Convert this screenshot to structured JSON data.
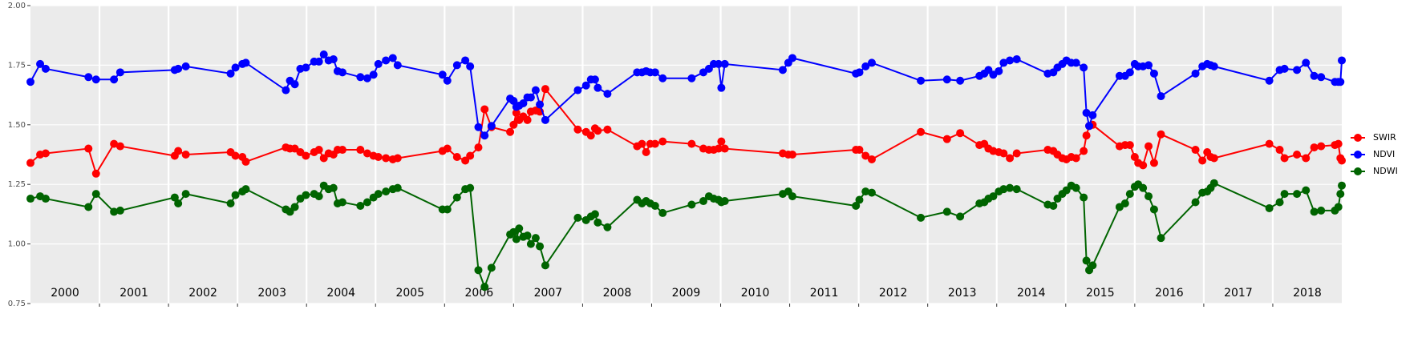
{
  "chart_data": {
    "type": "line",
    "categories": [
      "2000",
      "2001",
      "2002",
      "2003",
      "2004",
      "2005",
      "2006",
      "2007",
      "2008",
      "2009",
      "2010",
      "2011",
      "2012",
      "2013",
      "2014",
      "2015",
      "2016",
      "2017",
      "2018"
    ],
    "x": [
      2000.0,
      2000.14,
      2000.22,
      2000.84,
      2000.95,
      2001.21,
      2001.3,
      2002.09,
      2002.14,
      2002.25,
      2002.9,
      2002.97,
      2003.07,
      2003.12,
      2003.7,
      2003.76,
      2003.83,
      2003.91,
      2003.99,
      2004.11,
      2004.18,
      2004.25,
      2004.32,
      2004.39,
      2004.45,
      2004.52,
      2004.78,
      2004.88,
      2004.97,
      2005.04,
      2005.15,
      2005.25,
      2005.32,
      2005.97,
      2006.04,
      2006.18,
      2006.3,
      2006.37,
      2006.49,
      2006.58,
      2006.68,
      2006.95,
      2007.0,
      2007.04,
      2007.08,
      2007.14,
      2007.2,
      2007.25,
      2007.32,
      2007.38,
      2007.46,
      2007.93,
      2008.05,
      2008.12,
      2008.18,
      2008.22,
      2008.36,
      2008.79,
      2008.86,
      2008.92,
      2008.98,
      2009.05,
      2009.16,
      2009.58,
      2009.75,
      2009.83,
      2009.9,
      2009.97,
      2010.01,
      2010.06,
      2010.9,
      2010.98,
      2011.04,
      2011.96,
      2012.01,
      2012.1,
      2012.19,
      2012.9,
      2013.28,
      2013.47,
      2013.75,
      2013.82,
      2013.88,
      2013.95,
      2014.03,
      2014.1,
      2014.19,
      2014.29,
      2014.74,
      2014.82,
      2014.88,
      2014.95,
      2015.01,
      2015.08,
      2015.15,
      2015.26,
      2015.3,
      2015.34,
      2015.39,
      2015.78,
      2015.86,
      2015.93,
      2016.0,
      2016.05,
      2016.12,
      2016.2,
      2016.28,
      2016.38,
      2016.88,
      2016.98,
      2017.05,
      2017.1,
      2017.15,
      2017.95,
      2018.1,
      2018.17,
      2018.35,
      2018.48,
      2018.6,
      2018.7,
      2018.9,
      2018.95,
      2018.98,
      2019.0
    ],
    "series": [
      {
        "name": "SWIR",
        "color": "#ff0000",
        "values": [
          1.34,
          1.375,
          1.38,
          1.4,
          1.295,
          1.42,
          1.41,
          1.37,
          1.39,
          1.375,
          1.385,
          1.37,
          1.365,
          1.345,
          1.405,
          1.4,
          1.4,
          1.385,
          1.37,
          1.385,
          1.395,
          1.36,
          1.38,
          1.375,
          1.395,
          1.395,
          1.395,
          1.38,
          1.37,
          1.365,
          1.36,
          1.355,
          1.36,
          1.39,
          1.4,
          1.365,
          1.35,
          1.37,
          1.405,
          1.565,
          1.49,
          1.47,
          1.5,
          1.55,
          1.52,
          1.535,
          1.52,
          1.555,
          1.56,
          1.555,
          1.65,
          1.48,
          1.47,
          1.455,
          1.485,
          1.475,
          1.48,
          1.41,
          1.42,
          1.385,
          1.42,
          1.42,
          1.43,
          1.42,
          1.4,
          1.395,
          1.395,
          1.4,
          1.43,
          1.4,
          1.38,
          1.375,
          1.375,
          1.395,
          1.395,
          1.37,
          1.355,
          1.47,
          1.44,
          1.465,
          1.415,
          1.42,
          1.4,
          1.39,
          1.385,
          1.38,
          1.36,
          1.38,
          1.395,
          1.39,
          1.375,
          1.36,
          1.355,
          1.365,
          1.36,
          1.39,
          1.455,
          1.495,
          1.5,
          1.41,
          1.415,
          1.415,
          1.365,
          1.34,
          1.33,
          1.41,
          1.34,
          1.46,
          1.395,
          1.35,
          1.385,
          1.365,
          1.36,
          1.42,
          1.395,
          1.36,
          1.375,
          1.36,
          1.405,
          1.41,
          1.415,
          1.42,
          1.36,
          1.35
        ]
      },
      {
        "name": "NDVI",
        "color": "#0000ff",
        "values": [
          1.68,
          1.755,
          1.735,
          1.7,
          1.69,
          1.69,
          1.72,
          1.73,
          1.735,
          1.745,
          1.715,
          1.74,
          1.755,
          1.76,
          1.645,
          1.685,
          1.67,
          1.735,
          1.74,
          1.765,
          1.765,
          1.795,
          1.77,
          1.775,
          1.725,
          1.72,
          1.7,
          1.695,
          1.71,
          1.755,
          1.77,
          1.78,
          1.75,
          1.71,
          1.685,
          1.75,
          1.77,
          1.745,
          1.49,
          1.455,
          1.495,
          1.61,
          1.6,
          1.575,
          1.58,
          1.59,
          1.615,
          1.615,
          1.645,
          1.585,
          1.52,
          1.645,
          1.665,
          1.69,
          1.69,
          1.655,
          1.63,
          1.72,
          1.72,
          1.725,
          1.72,
          1.72,
          1.695,
          1.695,
          1.72,
          1.735,
          1.755,
          1.755,
          1.655,
          1.755,
          1.73,
          1.76,
          1.78,
          1.715,
          1.72,
          1.745,
          1.76,
          1.685,
          1.69,
          1.685,
          1.705,
          1.715,
          1.73,
          1.71,
          1.725,
          1.76,
          1.77,
          1.775,
          1.715,
          1.72,
          1.74,
          1.755,
          1.77,
          1.76,
          1.76,
          1.74,
          1.55,
          1.495,
          1.54,
          1.705,
          1.705,
          1.72,
          1.755,
          1.745,
          1.745,
          1.75,
          1.715,
          1.62,
          1.715,
          1.745,
          1.755,
          1.75,
          1.745,
          1.685,
          1.73,
          1.735,
          1.73,
          1.76,
          1.705,
          1.7,
          1.68,
          1.68,
          1.68,
          1.77
        ]
      },
      {
        "name": "NDWI",
        "color": "#006400",
        "values": [
          1.19,
          1.2,
          1.19,
          1.155,
          1.21,
          1.135,
          1.14,
          1.195,
          1.17,
          1.21,
          1.17,
          1.205,
          1.22,
          1.23,
          1.145,
          1.135,
          1.155,
          1.19,
          1.205,
          1.21,
          1.2,
          1.245,
          1.23,
          1.235,
          1.17,
          1.175,
          1.16,
          1.175,
          1.195,
          1.21,
          1.22,
          1.23,
          1.235,
          1.145,
          1.145,
          1.195,
          1.23,
          1.235,
          0.89,
          0.82,
          0.9,
          1.04,
          1.05,
          1.02,
          1.065,
          1.03,
          1.035,
          1.0,
          1.025,
          0.99,
          0.91,
          1.11,
          1.1,
          1.115,
          1.125,
          1.09,
          1.07,
          1.185,
          1.17,
          1.18,
          1.17,
          1.16,
          1.13,
          1.165,
          1.18,
          1.2,
          1.19,
          1.185,
          1.175,
          1.18,
          1.21,
          1.22,
          1.2,
          1.16,
          1.185,
          1.22,
          1.215,
          1.11,
          1.135,
          1.115,
          1.17,
          1.175,
          1.19,
          1.2,
          1.22,
          1.23,
          1.235,
          1.23,
          1.165,
          1.16,
          1.19,
          1.21,
          1.225,
          1.245,
          1.235,
          1.195,
          0.93,
          0.89,
          0.91,
          1.155,
          1.17,
          1.21,
          1.24,
          1.25,
          1.235,
          1.2,
          1.145,
          1.025,
          1.175,
          1.215,
          1.22,
          1.235,
          1.255,
          1.15,
          1.175,
          1.21,
          1.21,
          1.225,
          1.135,
          1.14,
          1.14,
          1.155,
          1.21,
          1.245
        ]
      }
    ],
    "xlim": [
      2000,
      2019
    ],
    "xticks": [
      2001,
      2002,
      2003,
      2004,
      2005,
      2006,
      2007,
      2008,
      2009,
      2010,
      2011,
      2012,
      2013,
      2014,
      2015,
      2016,
      2017,
      2018
    ],
    "ylim": [
      0.75,
      2.0
    ],
    "yticks": [
      0.75,
      {
        "value": 1,
        "label": "1.00"
      },
      1.25,
      {
        "value": 1.5,
        "label": "1.50"
      },
      1.75,
      {
        "value": 2,
        "label": "2.00"
      }
    ],
    "grid": true,
    "legend": "right"
  }
}
